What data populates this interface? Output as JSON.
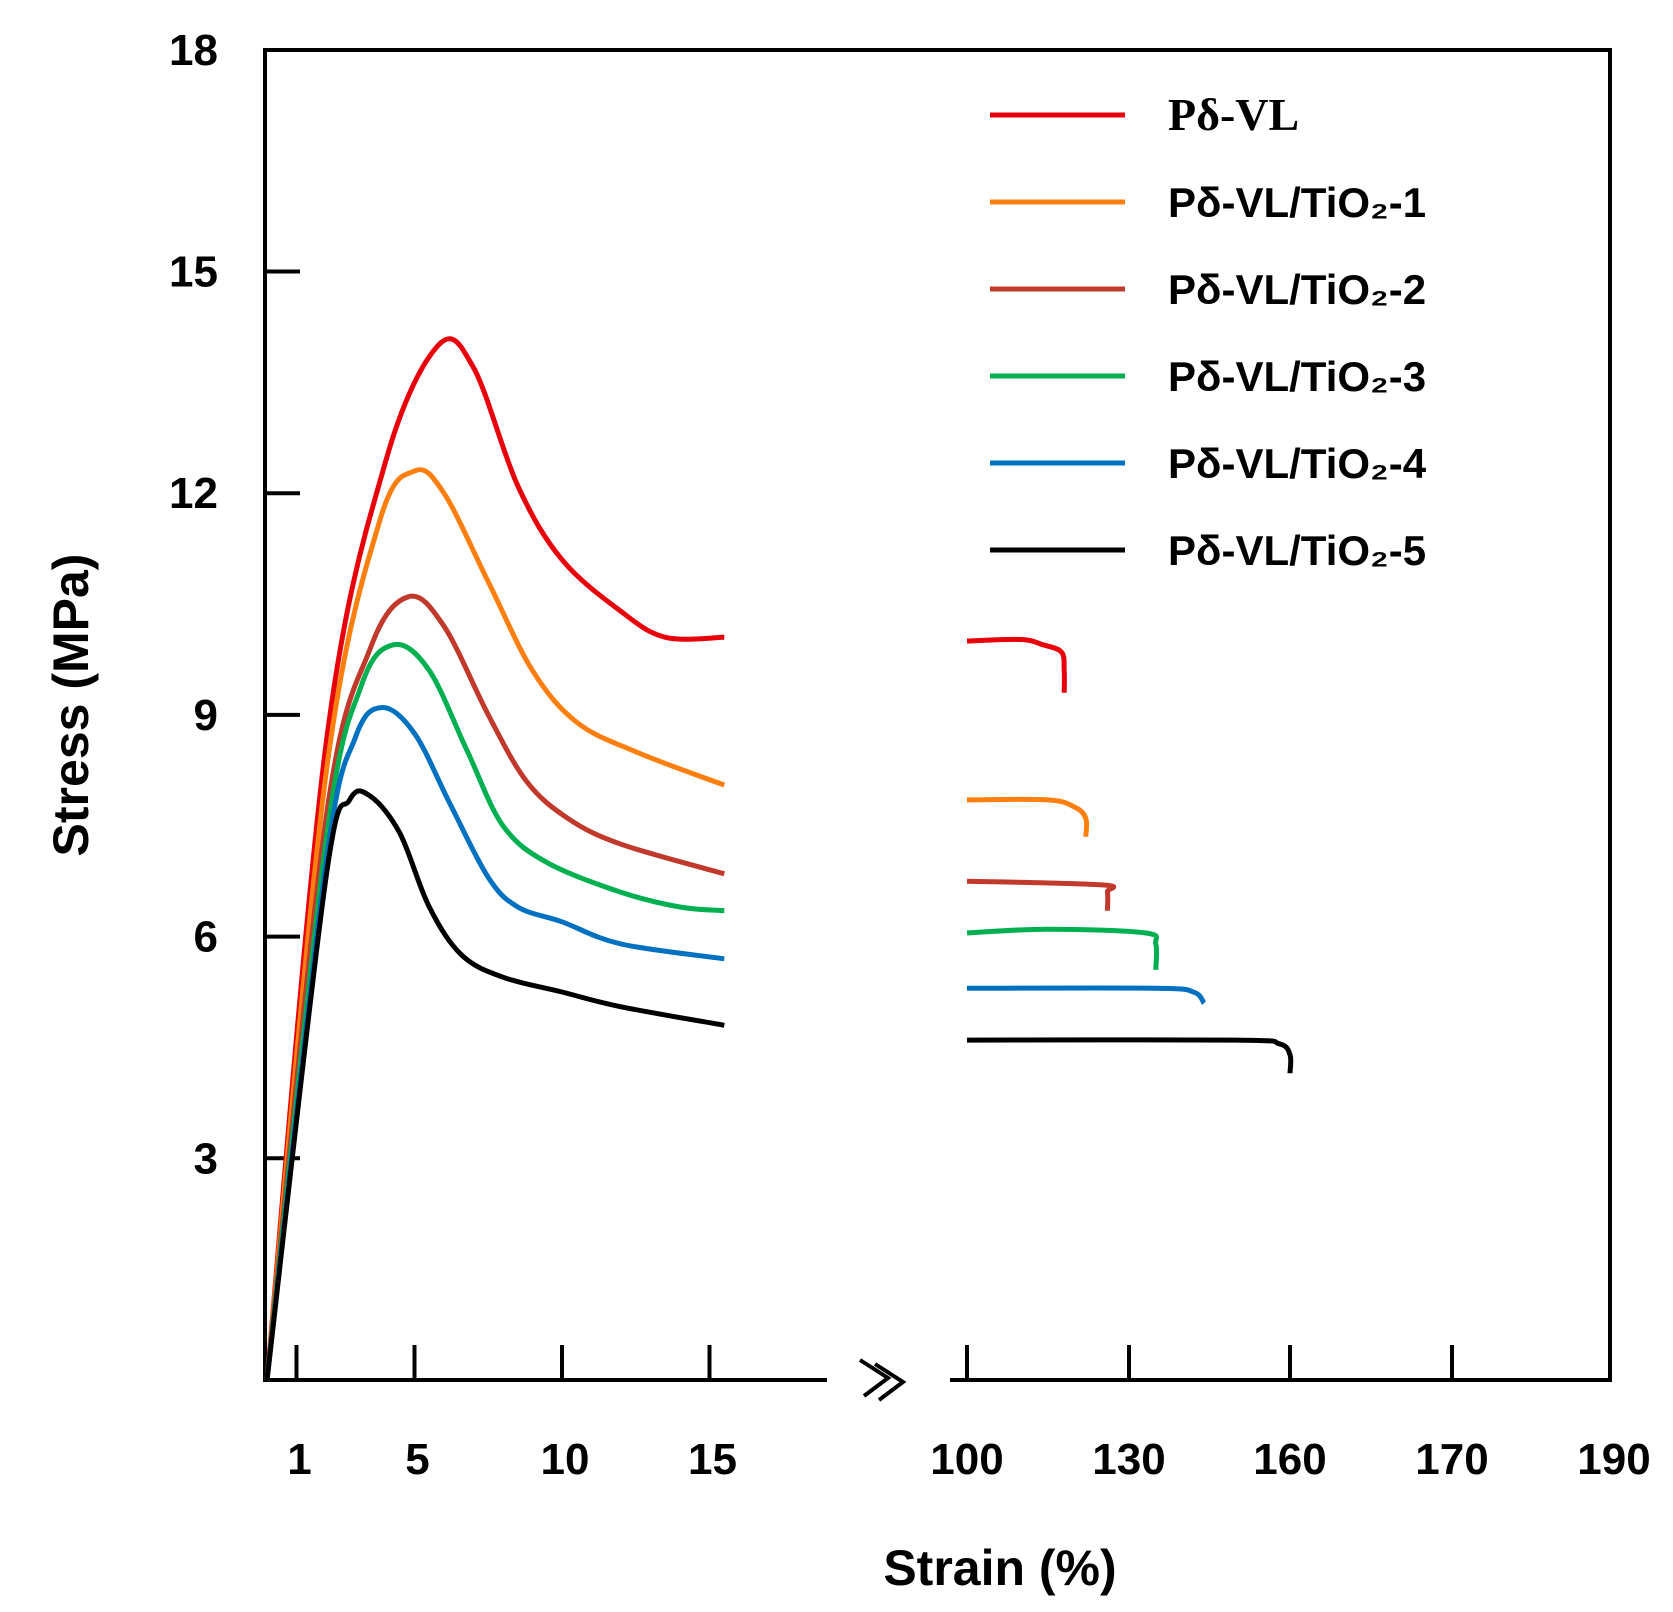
{
  "chart_data": {
    "type": "line",
    "xlabel": "Strain (%)",
    "ylabel": "Stress (MPa)",
    "ylim": [
      0,
      18
    ],
    "y_ticks": [
      3,
      6,
      9,
      12,
      15,
      18
    ],
    "x_axis_break": true,
    "x_segments": [
      {
        "ticks": [
          1,
          5,
          10,
          15
        ],
        "tick_labels": [
          "1",
          "5",
          "10",
          "15"
        ]
      },
      {
        "ticks": [
          100,
          130,
          160,
          170,
          190
        ],
        "tick_labels": [
          "100",
          "130",
          "160",
          "170",
          "190"
        ]
      }
    ],
    "legend_position": "top-right",
    "grid": false,
    "series": [
      {
        "name": "Pδ-VL",
        "color": "#e8000b",
        "segment1": [
          [
            0,
            0
          ],
          [
            2,
            8.6
          ],
          [
            4,
            12.4
          ],
          [
            5.8,
            14.0
          ],
          [
            7,
            13.7
          ],
          [
            8.5,
            12.1
          ],
          [
            10,
            11.1
          ],
          [
            12,
            10.4
          ],
          [
            13.5,
            10.05
          ],
          [
            15.5,
            10.05
          ]
        ],
        "segment2": [
          [
            100,
            10.0
          ],
          [
            110,
            10.02
          ],
          [
            114,
            9.95
          ],
          [
            117.5,
            9.85
          ],
          [
            118,
            9.6
          ],
          [
            118,
            9.3
          ]
        ]
      },
      {
        "name": "Pδ-VL/TiO₂-1",
        "color": "#ff7f0e",
        "segment1": [
          [
            0,
            0
          ],
          [
            2,
            8.2
          ],
          [
            3.8,
            11.6
          ],
          [
            5,
            12.3
          ],
          [
            6,
            12.0
          ],
          [
            7.5,
            10.8
          ],
          [
            9,
            9.6
          ],
          [
            10.5,
            8.9
          ],
          [
            12.5,
            8.5
          ],
          [
            15.5,
            8.05
          ]
        ],
        "segment2": [
          [
            100,
            7.85
          ],
          [
            115,
            7.85
          ],
          [
            120,
            7.75
          ],
          [
            122,
            7.6
          ],
          [
            122,
            7.35
          ]
        ]
      },
      {
        "name": "Pδ-VL/TiO₂-2",
        "color": "#c0392b",
        "segment1": [
          [
            0,
            0
          ],
          [
            2,
            7.6
          ],
          [
            3.5,
            9.9
          ],
          [
            4.8,
            10.6
          ],
          [
            6,
            10.2
          ],
          [
            7.5,
            9.0
          ],
          [
            8.8,
            8.1
          ],
          [
            10.2,
            7.6
          ],
          [
            12,
            7.25
          ],
          [
            15.5,
            6.85
          ]
        ],
        "segment2": [
          [
            100,
            6.75
          ],
          [
            125,
            6.7
          ],
          [
            126,
            6.6
          ],
          [
            126,
            6.35
          ]
        ]
      },
      {
        "name": "Pδ-VL/TiO₂-3",
        "color": "#00b050",
        "segment1": [
          [
            0,
            0
          ],
          [
            2,
            7.3
          ],
          [
            3.2,
            9.4
          ],
          [
            4.3,
            9.95
          ],
          [
            5.5,
            9.6
          ],
          [
            6.8,
            8.5
          ],
          [
            8,
            7.5
          ],
          [
            9.5,
            7.0
          ],
          [
            12,
            6.6
          ],
          [
            14,
            6.4
          ],
          [
            15.5,
            6.35
          ]
        ],
        "segment2": [
          [
            100,
            6.05
          ],
          [
            115,
            6.1
          ],
          [
            133,
            6.05
          ],
          [
            135,
            5.9
          ],
          [
            135,
            5.55
          ]
        ]
      },
      {
        "name": "Pδ-VL/TiO₂-4",
        "color": "#0070c0",
        "segment1": [
          [
            0,
            0
          ],
          [
            2,
            7.0
          ],
          [
            3,
            8.7
          ],
          [
            3.9,
            9.1
          ],
          [
            5,
            8.75
          ],
          [
            6.2,
            7.8
          ],
          [
            7.5,
            6.8
          ],
          [
            8.5,
            6.4
          ],
          [
            10,
            6.2
          ],
          [
            12,
            5.9
          ],
          [
            15.5,
            5.7
          ]
        ],
        "segment2": [
          [
            100,
            5.3
          ],
          [
            135,
            5.3
          ],
          [
            142,
            5.25
          ],
          [
            144,
            5.1
          ]
        ]
      },
      {
        "name": "Pδ-VL/TiO₂-5",
        "color": "#000000",
        "segment1": [
          [
            0,
            0
          ],
          [
            2,
            6.8
          ],
          [
            2.8,
            7.85
          ],
          [
            3.5,
            7.9
          ],
          [
            4.5,
            7.4
          ],
          [
            5.5,
            6.4
          ],
          [
            6.6,
            5.75
          ],
          [
            8,
            5.45
          ],
          [
            10,
            5.25
          ],
          [
            12,
            5.05
          ],
          [
            15.5,
            4.8
          ]
        ],
        "segment2": [
          [
            100,
            4.6
          ],
          [
            150,
            4.6
          ],
          [
            158,
            4.55
          ],
          [
            160,
            4.4
          ],
          [
            160,
            4.15
          ]
        ]
      }
    ]
  }
}
